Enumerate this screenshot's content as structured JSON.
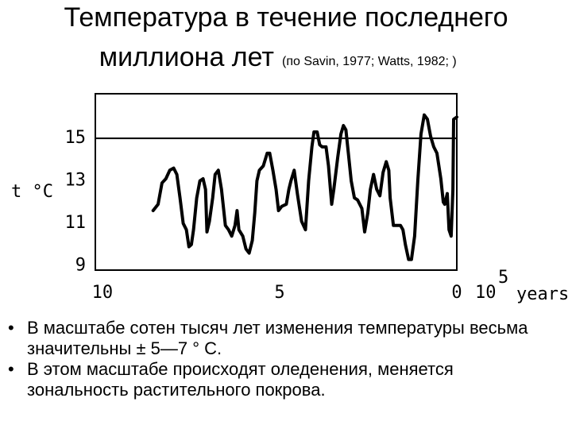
{
  "chart_data": {
    "type": "line",
    "title": [
      "Температура в течение последнего",
      "миллиона лет"
    ],
    "subtitle": "(по Savin, 1977; Watts, 1982; )",
    "y_label": "t °C",
    "x_unit_base": "10",
    "x_unit_exponent": "5",
    "x_unit_word": "years",
    "color": "#000000",
    "xlim": [
      10.2,
      0
    ],
    "xticks": [
      10,
      5,
      0
    ],
    "ylim": [
      8.8,
      17.1
    ],
    "yticks": [
      9,
      11,
      13,
      15
    ],
    "reference_line": 15,
    "x": [
      8.57,
      8.43,
      8.32,
      8.21,
      8.1,
      7.99,
      7.9,
      7.81,
      7.72,
      7.63,
      7.56,
      7.49,
      7.43,
      7.34,
      7.25,
      7.16,
      7.09,
      7.05,
      6.98,
      6.89,
      6.82,
      6.73,
      6.64,
      6.53,
      6.44,
      6.35,
      6.26,
      6.2,
      6.15,
      6.04,
      5.95,
      5.86,
      5.77,
      5.7,
      5.64,
      5.57,
      5.46,
      5.35,
      5.28,
      5.19,
      5.1,
      5.03,
      4.94,
      4.81,
      4.74,
      4.68,
      4.59,
      4.5,
      4.38,
      4.27,
      4.18,
      4.09,
      4.03,
      3.94,
      3.87,
      3.8,
      3.69,
      3.62,
      3.53,
      3.47,
      3.36,
      3.27,
      3.2,
      3.13,
      3.06,
      2.98,
      2.89,
      2.8,
      2.68,
      2.6,
      2.51,
      2.44,
      2.35,
      2.26,
      2.17,
      2.08,
      1.99,
      1.92,
      1.88,
      1.79,
      1.7,
      1.59,
      1.52,
      1.45,
      1.36,
      1.28,
      1.19,
      1.1,
      1.01,
      0.92,
      0.83,
      0.74,
      0.65,
      0.56,
      0.45,
      0.38,
      0.34,
      0.27,
      0.22,
      0.16,
      0.11,
      0.09,
      0
    ],
    "values": [
      11.6,
      11.9,
      12.9,
      13.1,
      13.5,
      13.6,
      13.3,
      12.2,
      11.0,
      10.7,
      9.9,
      10.0,
      10.7,
      12.2,
      13.0,
      13.1,
      12.6,
      10.6,
      11.1,
      12.2,
      13.3,
      13.5,
      12.6,
      10.9,
      10.7,
      10.4,
      10.9,
      11.6,
      10.7,
      10.4,
      9.8,
      9.6,
      10.2,
      11.5,
      13.0,
      13.5,
      13.7,
      14.3,
      14.3,
      13.5,
      12.6,
      11.6,
      11.8,
      11.9,
      12.6,
      13.0,
      13.5,
      12.4,
      11.1,
      10.7,
      13.0,
      14.6,
      15.3,
      15.3,
      14.7,
      14.6,
      14.6,
      13.7,
      11.9,
      12.6,
      14.1,
      15.2,
      15.6,
      15.4,
      14.3,
      13.0,
      12.2,
      12.1,
      11.7,
      10.6,
      11.5,
      12.6,
      13.3,
      12.6,
      12.3,
      13.4,
      13.9,
      13.5,
      12.2,
      10.9,
      10.9,
      10.9,
      10.7,
      10.0,
      9.3,
      9.3,
      10.4,
      13.0,
      15.2,
      16.1,
      15.9,
      15.1,
      14.6,
      14.3,
      13.1,
      12.0,
      11.9,
      12.4,
      10.7,
      10.4,
      12.6,
      15.9,
      16.0
    ]
  },
  "bullets": [
    "В масштабе сотен тысяч лет изменения температуры весьма значительны ± 5—7 ° С.",
    "В этом масштабе происходят оледенения, меняется зональность растительного покрова."
  ]
}
